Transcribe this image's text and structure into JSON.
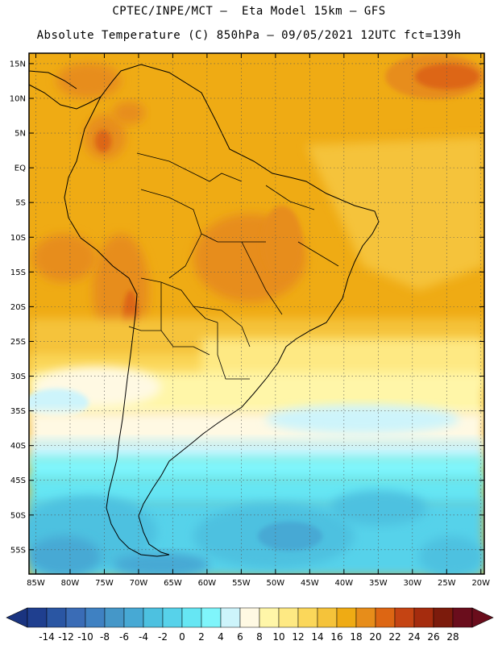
{
  "header": {
    "line1": "CPTEC/INPE/MCT –  Eta Model 15km – GFS",
    "line2": "Absolute Temperature (C) 850hPa – 09/05/2021 12UTC fct=139h"
  },
  "map": {
    "lat_labels": [
      "15N",
      "10N",
      "5N",
      "EQ",
      "5S",
      "10S",
      "15S",
      "20S",
      "25S",
      "30S",
      "35S",
      "40S",
      "45S",
      "50S",
      "55S"
    ],
    "lon_labels": [
      "85W",
      "80W",
      "75W",
      "70W",
      "65W",
      "60W",
      "55W",
      "50W",
      "45W",
      "40W",
      "35W",
      "30W",
      "25W",
      "20W"
    ],
    "gridlines": true,
    "extent": {
      "lon_min": -86,
      "lon_max": -19.5,
      "lat_min": -58.5,
      "lat_max": 16.5
    }
  },
  "colorbar": {
    "labels": [
      "-14",
      "-12",
      "-10",
      "-8",
      "-6",
      "-4",
      "-2",
      "0",
      "2",
      "4",
      "6",
      "8",
      "10",
      "12",
      "14",
      "16",
      "18",
      "20",
      "22",
      "24",
      "26",
      "28"
    ],
    "colors": [
      "#1f3f8f",
      "#2a56a3",
      "#3a6cb6",
      "#3f81c2",
      "#4597c8",
      "#47a9d4",
      "#4dc1e0",
      "#57d2ea",
      "#66e6f3",
      "#7ff5fb",
      "#cdf4fb",
      "#fff9e3",
      "#fff6a8",
      "#fee983",
      "#fbd75a",
      "#f5c33a",
      "#efab14",
      "#e78d1a",
      "#dd6613",
      "#c54413",
      "#a52c0e",
      "#7c1b0c",
      "#6a0d1c"
    ],
    "min_arrow_color": "#1a3480",
    "max_arrow_color": "#6a0d1c"
  }
}
